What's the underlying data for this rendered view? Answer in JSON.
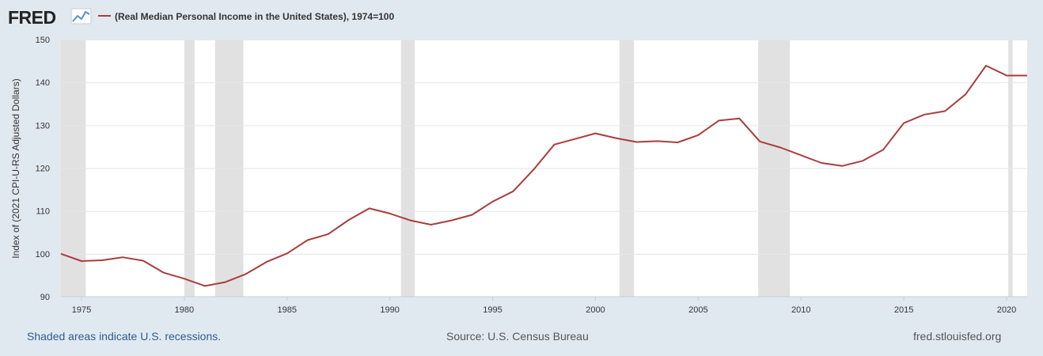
{
  "header": {
    "logo_text": "FRED",
    "logo_icon": "line-chart-icon",
    "legend_label": "(Real Median Personal Income in the United States), 1974=100"
  },
  "footer": {
    "recessions_note": "Shaded areas indicate U.S. recessions.",
    "source": "Source: U.S. Census Bureau",
    "url": "fred.stlouisfed.org"
  },
  "colors": {
    "background": "#e1e9f0",
    "plot_background": "#ffffff",
    "series": "#aa3d3d",
    "recession_shading": "#e1e1e1",
    "gridline": "#e6e6e6",
    "logo_dark": "#222222",
    "link_blue": "#2f5b93"
  },
  "chart_data": {
    "type": "line",
    "title": "",
    "xlabel": "",
    "ylabel": "Index of (2021 CPI-U-RS Adjusted Dollars)",
    "xlim": [
      1974,
      2021
    ],
    "ylim": [
      90,
      150
    ],
    "x_ticks": [
      1975,
      1980,
      1985,
      1990,
      1995,
      2000,
      2005,
      2010,
      2015,
      2020
    ],
    "y_ticks": [
      90,
      100,
      110,
      120,
      130,
      140,
      150
    ],
    "grid": true,
    "legend_position": "top-left",
    "series": [
      {
        "name": "(Real Median Personal Income in the United States), 1974=100",
        "x": [
          1974,
          1975,
          1976,
          1977,
          1978,
          1979,
          1980,
          1981,
          1982,
          1983,
          1984,
          1985,
          1986,
          1987,
          1988,
          1989,
          1990,
          1991,
          1992,
          1993,
          1994,
          1995,
          1996,
          1997,
          1998,
          1999,
          2000,
          2001,
          2002,
          2003,
          2004,
          2005,
          2006,
          2007,
          2008,
          2009,
          2010,
          2011,
          2012,
          2013,
          2014,
          2015,
          2016,
          2017,
          2018,
          2019,
          2020,
          2021
        ],
        "values": [
          100.0,
          98.3,
          98.5,
          99.2,
          98.4,
          95.6,
          94.2,
          92.5,
          93.4,
          95.3,
          98.1,
          100.1,
          103.2,
          104.6,
          107.9,
          110.6,
          109.4,
          107.8,
          106.8,
          107.8,
          109.1,
          112.2,
          114.6,
          119.7,
          125.5,
          126.8,
          128.1,
          127.0,
          126.1,
          126.3,
          126.0,
          127.7,
          131.1,
          131.6,
          126.2,
          124.8,
          123.0,
          121.2,
          120.5,
          121.7,
          124.3,
          130.5,
          132.5,
          133.3,
          137.2,
          143.9,
          141.6,
          141.6
        ]
      }
    ],
    "recessions": [
      [
        1973.875,
        1975.208
      ],
      [
        1980.0,
        1980.5
      ],
      [
        1981.5,
        1982.875
      ],
      [
        1990.542,
        1991.208
      ],
      [
        2001.167,
        2001.875
      ],
      [
        2007.917,
        2009.458
      ],
      [
        2020.083,
        2020.292
      ]
    ]
  }
}
